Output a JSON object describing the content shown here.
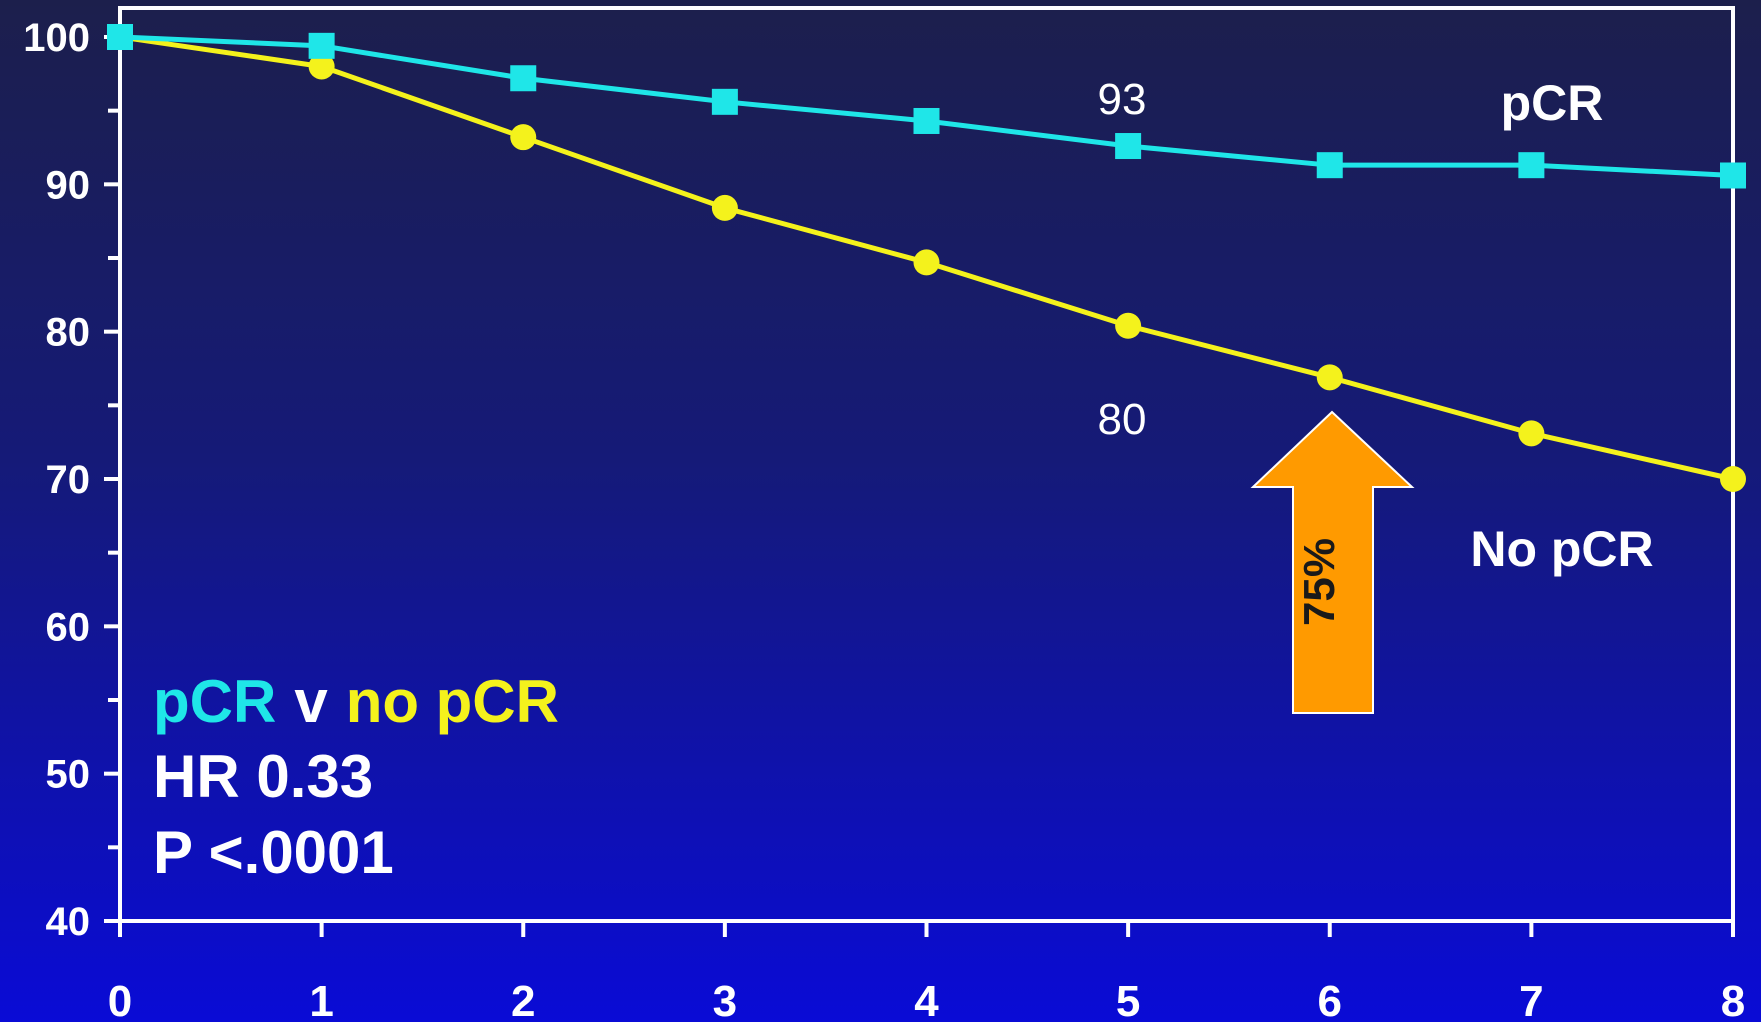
{
  "chart_data": {
    "type": "line",
    "x": [
      0,
      1,
      2,
      3,
      4,
      5,
      6,
      7,
      8
    ],
    "xlim": [
      0,
      8
    ],
    "ylim": [
      40,
      100
    ],
    "yticks": [
      40,
      50,
      60,
      70,
      80,
      90,
      100
    ],
    "xticks": [
      0,
      1,
      2,
      3,
      4,
      5,
      6,
      7,
      8
    ],
    "grid": false,
    "series": [
      {
        "name": "pCR",
        "color": "#1fe6e8",
        "marker": "square",
        "values": [
          100,
          99.4,
          97.2,
          95.6,
          94.3,
          92.6,
          91.3,
          91.3,
          90.6
        ]
      },
      {
        "name": "No pCR",
        "color": "#f4f21c",
        "marker": "circle",
        "values": [
          100,
          98.0,
          93.2,
          88.4,
          84.7,
          80.4,
          76.9,
          73.1,
          70.0
        ]
      }
    ],
    "annotations": {
      "pcr_value": "93",
      "nopcr_value": "80",
      "arrow_text": "75%",
      "arrow_color": "#ff9a00"
    }
  },
  "stats": {
    "comparison_a": "pCR",
    "comparison_v": "v",
    "comparison_b": "no pCR",
    "hr": "HR 0.33",
    "p": "P <.0001"
  },
  "colors": {
    "axis": "#ffffff",
    "pcr": "#1fe6e8",
    "nopcr": "#f4f21c",
    "text": "#ffffff"
  }
}
